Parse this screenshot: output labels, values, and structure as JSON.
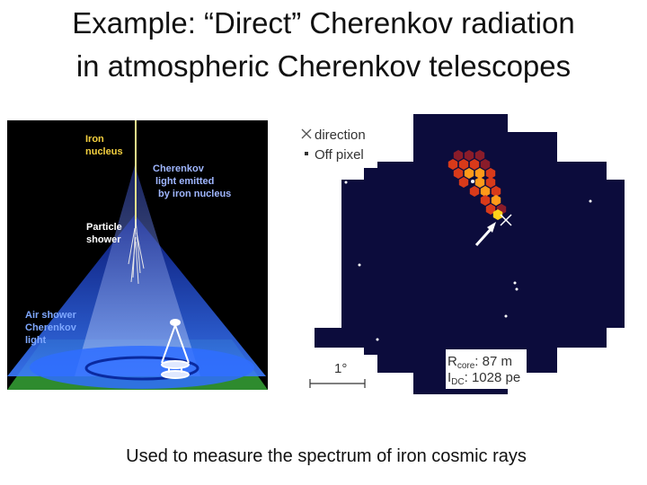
{
  "slide": {
    "title_line1": "Example: “Direct” Cherenkov radiation",
    "title_line2": "in atmospheric Cherenkov telescopes",
    "caption": "Used to measure the spectrum of iron cosmic rays"
  },
  "left_figure": {
    "label_iron_1": "Iron",
    "label_iron_2": "nucleus",
    "label_cher_1": "Cherenkov",
    "label_cher_2": "light emitted",
    "label_cher_3": "by iron nucleus",
    "label_particle_1": "Particle",
    "label_particle_2": "shower",
    "label_air_1": "Air shower",
    "label_air_2": "Cherenkov",
    "label_air_3": "light",
    "colors": {
      "background": "#000000",
      "ground": "#2e8b2e",
      "cone": "#2a5cff",
      "iron_label": "#f4d03f",
      "cher_label": "#9fb6ff",
      "shower_label": "#ffffff",
      "air_label": "#7fa8ff"
    }
  },
  "right_figure": {
    "legend_direction": "direction",
    "legend_offpixel": "Off pixel",
    "scale_label": "1°",
    "rcore_label": "R",
    "rcore_sub": "core",
    "rcore_value": ": 87 m",
    "ipe_label": "I",
    "ipe_sub": "DC",
    "ipe_value": ": 1028 pe",
    "colors": {
      "camera": "#0c0c3c",
      "hot": "#ff9a1a",
      "warm": "#d83a1a",
      "cool": "#8a1c2a",
      "hotspot": "#ffd21a"
    }
  }
}
